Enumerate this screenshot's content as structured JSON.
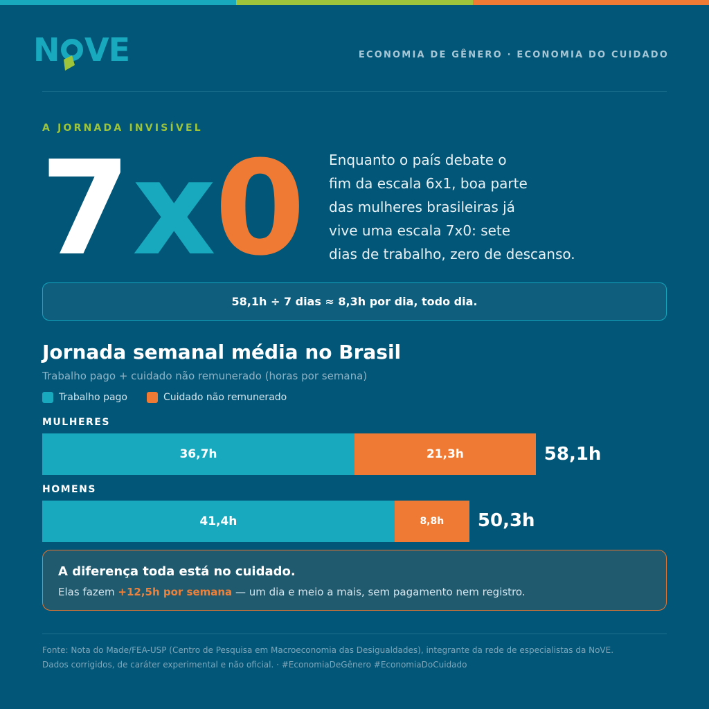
{
  "colors": {
    "background": "#025677",
    "teal": "#18a9bf",
    "orange": "#ef7a33",
    "green": "#9dc43a",
    "white": "#ffffff"
  },
  "topbar_colors": [
    "#18a9bf",
    "#9dc43a",
    "#ef7a33"
  ],
  "header": {
    "logo_text": "NoVE",
    "tagline": "ECONOMIA DE GÊNERO · ECONOMIA DO CUIDADO"
  },
  "hero": {
    "kicker": "A JORNADA INVISÍVEL",
    "big_parts": [
      {
        "text": "7",
        "color": "#ffffff"
      },
      {
        "text": "x",
        "color": "#18a9bf"
      },
      {
        "text": "0",
        "color": "#ef7a33"
      }
    ],
    "intro_lines": [
      "Enquanto o país debate o",
      "fim da escala 6x1, boa parte",
      "das mulheres brasileiras já",
      "vive uma escala 7x0: sete",
      "dias de trabalho, zero de descanso."
    ]
  },
  "formula": "58,1h ÷ 7 dias ≈ 8,3h por dia, todo dia.",
  "chart_data": {
    "type": "bar",
    "orientation": "horizontal-stacked",
    "title": "Jornada semanal média no Brasil",
    "subtitle": "Trabalho pago + cuidado não remunerado (horas por semana)",
    "legend": [
      {
        "name": "Trabalho pago",
        "color": "#18a9bf"
      },
      {
        "name": "Cuidado não remunerado",
        "color": "#ef7a33"
      }
    ],
    "categories": [
      "MULHERES",
      "HOMENS"
    ],
    "series": [
      {
        "name": "Trabalho pago",
        "values": [
          36.7,
          41.4
        ],
        "labels": [
          "36,7h",
          "41,4h"
        ],
        "color": "#18a9bf"
      },
      {
        "name": "Cuidado não remunerado",
        "values": [
          21.3,
          8.8
        ],
        "labels": [
          "21,3h",
          "8,8h"
        ],
        "color": "#ef7a33"
      }
    ],
    "totals": [
      "58,1h",
      "50,3h"
    ],
    "total_values": [
      58.1,
      50.3
    ],
    "grid": false
  },
  "callout": {
    "title": "A diferença toda está no cuidado.",
    "text_before": "Elas fazem ",
    "highlight": "+12,5h por semana",
    "text_after": " — um dia e meio a mais, sem pagamento nem registro."
  },
  "footer": {
    "line1": "Fonte: Nota do Made/FEA-USP (Centro de Pesquisa em Macroeconomia das Desigualdades), integrante da rede de especialistas da NoVE.",
    "line2": "Dados corrigidos, de caráter experimental e não oficial. · #EconomiaDeGênero #EconomiaDoCuidado"
  }
}
